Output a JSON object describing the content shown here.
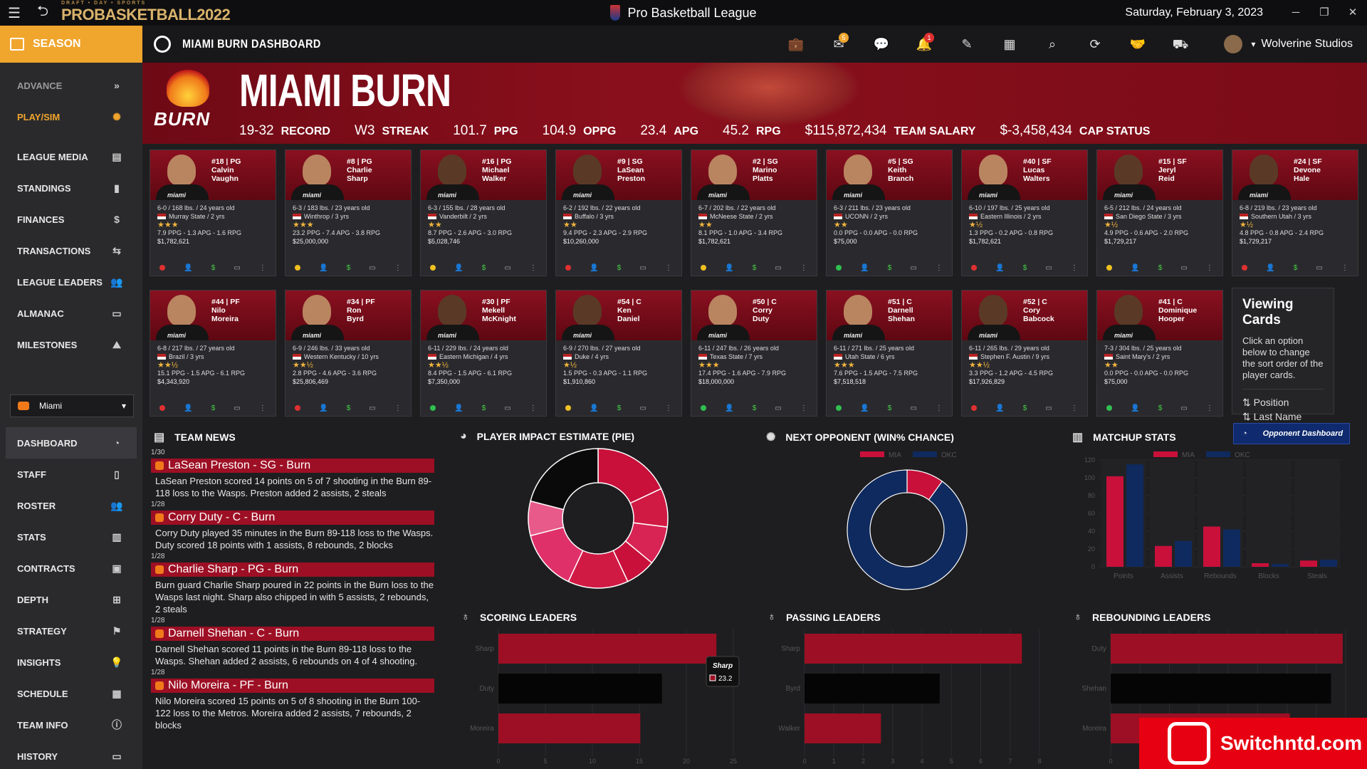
{
  "app": {
    "title": "Pro Basketball League",
    "date": "Saturday, February 3, 2023",
    "logo": "PROBASKETBALL2022",
    "logo_small": "DRAFT • DAY • SPORTS"
  },
  "sidebar": {
    "season_label": "SEASON",
    "advance": "ADVANCE",
    "play_sim": "PLAY/SIM",
    "items_top": [
      "LEAGUE MEDIA",
      "STANDINGS",
      "FINANCES",
      "TRANSACTIONS",
      "LEAGUE LEADERS",
      "ALMANAC",
      "MILESTONES"
    ],
    "team_select": "Miami",
    "items_team": [
      "DASHBOARD",
      "STAFF",
      "ROSTER",
      "STATS",
      "CONTRACTS",
      "DEPTH",
      "STRATEGY",
      "INSIGHTS",
      "SCHEDULE",
      "TEAM INFO",
      "HISTORY"
    ]
  },
  "topbar": {
    "title": "MIAMI BURN DASHBOARD",
    "mail_badge": "5",
    "bell_badge": "1",
    "user": "Wolverine Studios"
  },
  "hero": {
    "team": "MIAMI BURN",
    "logo_text": "BURN",
    "stats": [
      {
        "value": "19-32",
        "label": "RECORD"
      },
      {
        "value": "W3",
        "label": "STREAK"
      },
      {
        "value": "101.7",
        "label": "PPG"
      },
      {
        "value": "104.9",
        "label": "OPPG"
      },
      {
        "value": "23.4",
        "label": "APG"
      },
      {
        "value": "45.2",
        "label": "RPG"
      },
      {
        "value": "$115,872,434",
        "label": "TEAM SALARY"
      },
      {
        "value": "$-3,458,434",
        "label": "CAP STATUS"
      }
    ]
  },
  "jersey_text": "miami",
  "players": [
    {
      "num": "#18 | PG",
      "first": "Calvin",
      "last": "Vaughn",
      "body": "6-0 / 168 lbs. / 24 years old",
      "school": "Murray State / 2 yrs",
      "stars": "★★★",
      "line": "7.9 PPG - 1.3 APG - 1.6 RPG",
      "salary": "$1,782,621",
      "dot": "#e03030"
    },
    {
      "num": "#8 | PG",
      "first": "Charlie",
      "last": "Sharp",
      "body": "6-3 / 183 lbs. / 23 years old",
      "school": "Winthrop / 3 yrs",
      "stars": "★★★",
      "line": "23.2 PPG - 7.4 APG - 3.8 RPG",
      "salary": "$25,000,000",
      "dot": "#f0c020"
    },
    {
      "num": "#16 | PG",
      "first": "Michael",
      "last": "Walker",
      "body": "6-3 / 155 lbs. / 28 years old",
      "school": "Vanderbilt / 2 yrs",
      "stars": "★★",
      "line": "8.7 PPG - 2.6 APG - 3.0 RPG",
      "salary": "$5,028,746",
      "dot": "#f0c020"
    },
    {
      "num": "#9 | SG",
      "first": "LaSean",
      "last": "Preston",
      "body": "6-2 / 192 lbs. / 22 years old",
      "school": "Buffalo / 3 yrs",
      "stars": "★★",
      "line": "9.4 PPG - 2.3 APG - 2.9 RPG",
      "salary": "$10,260,000",
      "dot": "#e03030"
    },
    {
      "num": "#2 | SG",
      "first": "Marino",
      "last": "Platts",
      "body": "6-7 / 202 lbs. / 22 years old",
      "school": "McNeese State / 2 yrs",
      "stars": "★★",
      "line": "8.1 PPG - 1.0 APG - 3.4 RPG",
      "salary": "$1,782,621",
      "dot": "#f0c020"
    },
    {
      "num": "#5 | SG",
      "first": "Keith",
      "last": "Branch",
      "body": "6-3 / 211 lbs. / 23 years old",
      "school": "UCONN / 2 yrs",
      "stars": "★★",
      "line": "0.0 PPG - 0.0 APG - 0.0 RPG",
      "salary": "$75,000",
      "dot": "#30c050"
    },
    {
      "num": "#40 | SF",
      "first": "Lucas",
      "last": "Walters",
      "body": "6-10 / 197 lbs. / 25 years old",
      "school": "Eastern Illinois / 2 yrs",
      "stars": "★½",
      "line": "1.3 PPG - 0.2 APG - 0.8 RPG",
      "salary": "$1,782,621",
      "dot": "#e03030"
    },
    {
      "num": "#15 | SF",
      "first": "Jeryl",
      "last": "Reid",
      "body": "6-5 / 212 lbs. / 24 years old",
      "school": "San Diego State / 3 yrs",
      "stars": "★½",
      "line": "4.9 PPG - 0.6 APG - 2.0 RPG",
      "salary": "$1,729,217",
      "dot": "#f0c020"
    },
    {
      "num": "#24 | SF",
      "first": "Devone",
      "last": "Hale",
      "body": "6-8 / 219 lbs. / 23 years old",
      "school": "Southern Utah / 3 yrs",
      "stars": "★½",
      "line": "4.8 PPG - 0.8 APG - 2.4 RPG",
      "salary": "$1,729,217",
      "dot": "#e03030"
    },
    {
      "num": "#44 | PF",
      "first": "Nilo",
      "last": "Moreira",
      "body": "6-8 / 217 lbs. / 27 years old",
      "school": "Brazil / 3 yrs",
      "stars": "★★½",
      "line": "15.1 PPG - 1.5 APG - 6.1 RPG",
      "salary": "$4,343,920",
      "dot": "#e03030"
    },
    {
      "num": "#34 | PF",
      "first": "Ron",
      "last": "Byrd",
      "body": "6-9 / 246 lbs. / 33 years old",
      "school": "Western Kentucky / 10 yrs",
      "stars": "★★½",
      "line": "2.8 PPG - 4.6 APG - 3.6 RPG",
      "salary": "$25,806,469",
      "dot": "#e03030"
    },
    {
      "num": "#30 | PF",
      "first": "Mekell",
      "last": "McKnight",
      "body": "6-11 / 229 lbs. / 24 years old",
      "school": "Eastern Michigan / 4 yrs",
      "stars": "★★½",
      "line": "8.4 PPG - 1.5 APG - 6.1 RPG",
      "salary": "$7,350,000",
      "dot": "#30c050"
    },
    {
      "num": "#54 | C",
      "first": "Ken",
      "last": "Daniel",
      "body": "6-9 / 270 lbs. / 27 years old",
      "school": "Duke / 4 yrs",
      "stars": "★½",
      "line": "1.5 PPG - 0.3 APG - 1.1 RPG",
      "salary": "$1,910,860",
      "dot": "#f0c020"
    },
    {
      "num": "#50 | C",
      "first": "Corry",
      "last": "Duty",
      "body": "6-11 / 247 lbs. / 26 years old",
      "school": "Texas State / 7 yrs",
      "stars": "★★★",
      "line": "17.4 PPG - 1.6 APG - 7.9 RPG",
      "salary": "$18,000,000",
      "dot": "#30c050"
    },
    {
      "num": "#51 | C",
      "first": "Darnell",
      "last": "Shehan",
      "body": "6-11 / 271 lbs. / 25 years old",
      "school": "Utah State / 6 yrs",
      "stars": "★★★",
      "line": "7.6 PPG - 1.5 APG - 7.5 RPG",
      "salary": "$7,518,518",
      "dot": "#30c050"
    },
    {
      "num": "#52 | C",
      "first": "Cory",
      "last": "Babcock",
      "body": "6-11 / 265 lbs. / 29 years old",
      "school": "Stephen F. Austin / 9 yrs",
      "stars": "★★½",
      "line": "3.3 PPG - 1.2 APG - 4.5 RPG",
      "salary": "$17,926,829",
      "dot": "#e03030"
    },
    {
      "num": "#41 | C",
      "first": "Dominique",
      "last": "Hooper",
      "body": "7-3 / 304 lbs. / 25 years old",
      "school": "Saint Mary's / 2 yrs",
      "stars": "★★",
      "line": "0.0 PPG - 0.0 APG - 0.0 RPG",
      "salary": "$75,000",
      "dot": "#30c050"
    }
  ],
  "viewing_cards": {
    "title": "Viewing Cards",
    "text": "Click an option below to change the sort order of the player cards.",
    "opt1": "Position",
    "opt2": "Last Name"
  },
  "sections": {
    "news": "TEAM NEWS",
    "impact": "PLAYER IMPACT ESTIMATE (PIE)",
    "opponent": "NEXT OPPONENT (WIN% CHANCE)",
    "matchup": "MATCHUP STATS",
    "scoring": "SCORING LEADERS",
    "passing": "PASSING LEADERS",
    "rebounding": "REBOUNDING LEADERS",
    "opp_button": "Opponent Dashboard"
  },
  "news": [
    {
      "date": "1/30",
      "head": "LaSean Preston - SG - Burn",
      "body": "LaSean Preston scored 14 points on 5 of 7 shooting in the Burn 89-118 loss to the Wasps. Preston added 2 assists, 2 steals"
    },
    {
      "date": "1/28",
      "head": "Corry Duty - C - Burn",
      "body": "Corry Duty played 35 minutes in the Burn 89-118 loss to the Wasps. Duty scored 18 points with 1 assists, 8 rebounds, 2 blocks"
    },
    {
      "date": "1/28",
      "head": "Charlie Sharp - PG - Burn",
      "body": "Burn guard Charlie Sharp poured in 22 points in the Burn loss to the Wasps last night. Sharp also chipped in with 5 assists, 2 rebounds, 2 steals"
    },
    {
      "date": "1/28",
      "head": "Darnell Shehan - C - Burn",
      "body": "Darnell Shehan scored 11 points in the Burn 89-118 loss to the Wasps. Shehan added 2 assists, 6 rebounds on 4 of 4 shooting."
    },
    {
      "date": "1/28",
      "head": "Nilo Moreira - PF - Burn",
      "body": "Nilo Moreira scored 15 points on 5 of 8 shooting in the Burn 100-122 loss to the Metros. Moreira added 2 assists, 7 rebounds, 2 blocks"
    }
  ],
  "chart_data": [
    {
      "type": "pie",
      "title": "PLAYER IMPACT ESTIMATE (PIE)",
      "values": [
        18,
        9,
        9,
        7,
        14,
        14,
        8,
        21
      ],
      "colors": [
        "#c8103a",
        "#d01a44",
        "#d82454",
        "#c8103a",
        "#d01a44",
        "#e0306a",
        "#e85a8a",
        "#0a0a0a"
      ]
    },
    {
      "type": "pie",
      "title": "NEXT OPPONENT (WIN% CHANCE)",
      "series": [
        {
          "name": "MIA",
          "value": 10,
          "color": "#c8103a"
        },
        {
          "name": "OKC",
          "value": 90,
          "color": "#0f2a5e"
        }
      ]
    },
    {
      "type": "bar",
      "title": "MATCHUP STATS",
      "categories": [
        "Points",
        "Assists",
        "Rebounds",
        "Blocks",
        "Steals"
      ],
      "series": [
        {
          "name": "MIA",
          "values": [
            101.7,
            23.4,
            45.2,
            4,
            7
          ],
          "color": "#c8103a"
        },
        {
          "name": "OKC",
          "values": [
            115,
            29,
            42,
            3,
            8
          ],
          "color": "#0f2a5e"
        }
      ],
      "ylim": [
        0,
        120
      ],
      "yticks": [
        "0",
        "20",
        "40",
        "60",
        "80",
        "100",
        "120"
      ]
    },
    {
      "type": "bar",
      "title": "SCORING LEADERS",
      "categories": [
        "Sharp",
        "Duty",
        "Moreira"
      ],
      "values": [
        23.2,
        17.4,
        15.1
      ],
      "xlim": [
        0,
        25
      ],
      "xticks": [
        "0",
        "5",
        "10",
        "15",
        "20",
        "25"
      ],
      "tooltip": {
        "name": "Sharp",
        "value": "23.2"
      }
    },
    {
      "type": "bar",
      "title": "PASSING LEADERS",
      "categories": [
        "Sharp",
        "Byrd",
        "Walker"
      ],
      "values": [
        7.4,
        4.6,
        2.6
      ],
      "xlim": [
        0,
        8
      ],
      "xticks": [
        "0",
        "1",
        "2",
        "3",
        "4",
        "5",
        "6",
        "7",
        "8"
      ]
    },
    {
      "type": "bar",
      "title": "REBOUNDING LEADERS",
      "categories": [
        "Duty",
        "Shehan",
        "Moreira"
      ],
      "values": [
        7.9,
        7.5,
        6.1
      ],
      "xlim": [
        0,
        8
      ],
      "xticks": [
        "0",
        "1",
        "2",
        "3",
        "4",
        "5",
        "6",
        "7",
        "8"
      ]
    }
  ],
  "watermark": "Switchntd.com"
}
